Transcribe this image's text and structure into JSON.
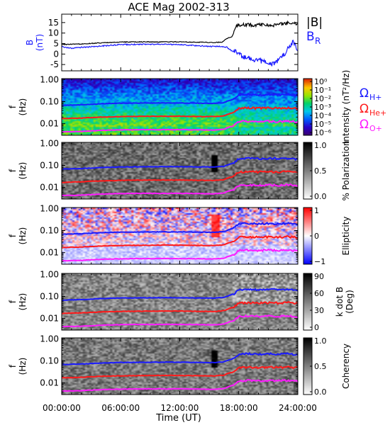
{
  "title": "ACE Mag 2002-313",
  "xaxis": {
    "label": "Time (UT)",
    "ticks": [
      "00:00:00",
      "06:00:00",
      "12:00:00",
      "18:00:00",
      "24:00:00"
    ],
    "tick_hours": [
      0,
      6,
      12,
      18,
      24
    ],
    "range_hours": [
      0,
      24
    ]
  },
  "freq_axis": {
    "label_top": "f",
    "label_bottom": "(Hz)",
    "ticks": [
      "1.00",
      "0.10",
      "0.01"
    ],
    "tick_values": [
      1.0,
      0.1,
      0.01
    ],
    "range": [
      0.003,
      1.1
    ],
    "scale": "log"
  },
  "legend_bfield": {
    "total": "|B|",
    "radial": "B",
    "radial_sub": "R"
  },
  "legend_cyclotron": [
    {
      "symbol": "Ω",
      "sub": "H+",
      "color": "#1a1aff"
    },
    {
      "symbol": "Ω",
      "sub": "He+",
      "color": "#ff1a1a"
    },
    {
      "symbol": "Ω",
      "sub": "O+",
      "color": "#ff1aff"
    }
  ],
  "colors": {
    "B_total": "#000000",
    "B_radial": "#1a1aff",
    "H_plus": "#1a1aff",
    "He_plus": "#ff1a1a",
    "O_plus": "#ff1aff"
  },
  "chart_data": [
    {
      "type": "line",
      "panel": "B",
      "ylabel_top": "B",
      "ylabel_bottom": "(nT)",
      "yticks": [
        15,
        10,
        5,
        0,
        -5
      ],
      "ylim": [
        -8,
        19
      ],
      "series": [
        {
          "name": "|B|",
          "x": [
            0,
            2,
            4,
            6,
            8,
            10,
            12,
            14,
            15.5,
            16.3,
            16.8,
            17.3,
            17.8,
            18.5,
            19.5,
            20.5,
            21.5,
            22.5,
            23.5,
            24
          ],
          "y": [
            4.5,
            4.8,
            5.3,
            5.7,
            5.8,
            5.8,
            5.8,
            5.6,
            5.5,
            5.7,
            7.5,
            8.2,
            13.5,
            14,
            13.8,
            14.2,
            13.5,
            14.5,
            15,
            14
          ]
        },
        {
          "name": "B_R",
          "x": [
            0,
            1,
            2,
            4,
            6,
            8,
            10,
            12,
            14,
            15.5,
            16.3,
            16.8,
            17.3,
            17.8,
            18.5,
            19.5,
            20.5,
            21.5,
            22.5,
            23.5,
            24
          ],
          "y": [
            3.5,
            2.8,
            3.2,
            3.8,
            4.5,
            4.6,
            4.7,
            4.5,
            3.9,
            3.6,
            3.7,
            3.2,
            1.5,
            0.8,
            -1.5,
            -2.5,
            -3.5,
            -5,
            -1,
            6,
            2
          ]
        }
      ]
    },
    {
      "type": "heatmap",
      "panel": "intensity",
      "colorbar_label": "Intensity (nT²/Hz)",
      "colorbar_ticks": [
        "10⁰",
        "10⁻¹",
        "10⁻²",
        "10⁻³",
        "10⁻⁴",
        "10⁻⁵",
        "10⁻⁶"
      ],
      "colorbar_range": [
        -6.5,
        0.2
      ]
    },
    {
      "type": "heatmap",
      "panel": "polarization",
      "colorbar_label": "% Polarization",
      "colorbar_ticks": [
        "1.0",
        "0.5",
        "0.0"
      ],
      "colorbar_range": [
        0,
        1
      ]
    },
    {
      "type": "heatmap",
      "panel": "ellipticity",
      "colorbar_label": "Ellipticity",
      "colorbar_ticks": [
        "1",
        "0",
        "−1"
      ],
      "colorbar_range": [
        -1,
        1
      ]
    },
    {
      "type": "heatmap",
      "panel": "kdotb",
      "colorbar_label_top": "k dot B",
      "colorbar_label_bottom": "(Deg)",
      "colorbar_ticks": [
        "90",
        "60",
        "30",
        "0"
      ],
      "colorbar_range": [
        0,
        90
      ]
    },
    {
      "type": "heatmap",
      "panel": "coherency",
      "colorbar_label": "Coherency",
      "colorbar_ticks": [
        "1.0",
        "0.5",
        "0.0"
      ],
      "colorbar_range": [
        0,
        1
      ]
    },
    {
      "type": "line",
      "panel": "cyclotron-frequencies",
      "series": [
        {
          "name": "ΩH+",
          "x": [
            0,
            2,
            4,
            6,
            8,
            10,
            12,
            14,
            15.5,
            16.5,
            17,
            17.5,
            18,
            19,
            20,
            21,
            22,
            23,
            24
          ],
          "y": [
            0.068,
            0.072,
            0.08,
            0.085,
            0.086,
            0.087,
            0.087,
            0.085,
            0.084,
            0.09,
            0.11,
            0.13,
            0.2,
            0.21,
            0.2,
            0.21,
            0.2,
            0.21,
            0.19
          ]
        },
        {
          "name": "ΩHe+",
          "x": [
            0,
            2,
            4,
            6,
            8,
            10,
            12,
            14,
            15.5,
            16.5,
            17,
            17.5,
            18,
            19,
            20,
            21,
            22,
            23,
            24
          ],
          "y": [
            0.017,
            0.018,
            0.02,
            0.021,
            0.0215,
            0.0218,
            0.0218,
            0.0212,
            0.021,
            0.0225,
            0.028,
            0.032,
            0.05,
            0.052,
            0.05,
            0.052,
            0.05,
            0.053,
            0.048
          ]
        },
        {
          "name": "ΩO+",
          "x": [
            0,
            2,
            4,
            6,
            8,
            10,
            12,
            14,
            15.5,
            16.5,
            17,
            17.5,
            18,
            19,
            20,
            21,
            22,
            23,
            24
          ],
          "y": [
            0.0043,
            0.0045,
            0.005,
            0.0053,
            0.0054,
            0.0054,
            0.0054,
            0.0053,
            0.0052,
            0.0056,
            0.007,
            0.008,
            0.0125,
            0.013,
            0.0125,
            0.013,
            0.0125,
            0.0132,
            0.012
          ]
        }
      ]
    }
  ]
}
